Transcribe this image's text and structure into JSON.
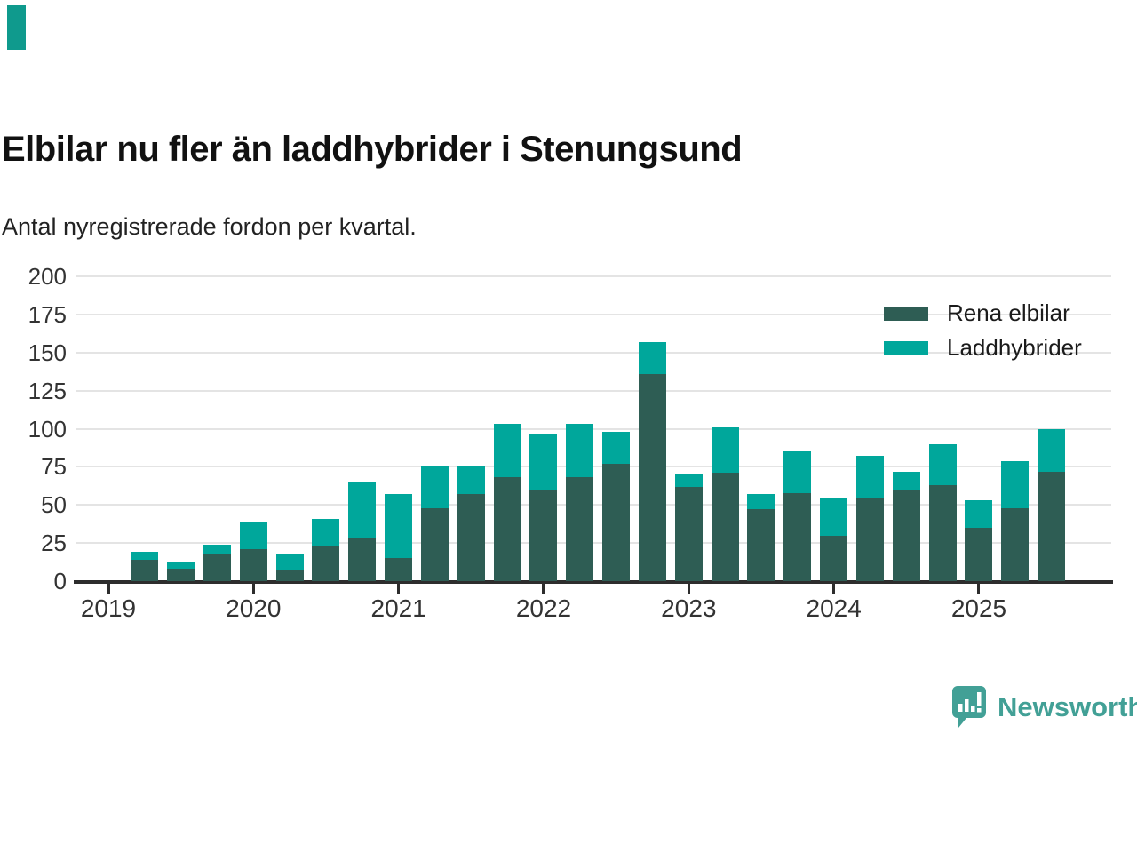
{
  "header": {
    "title": "Elbilar nu fler än laddhybrider i Stenungsund",
    "subtitle": "Antal nyregistrerade fordon per kvartal."
  },
  "colors": {
    "rena_elbilar": "#2e5d54",
    "laddhybrider": "#00a79b",
    "accent_mark": "#0f9a8d",
    "brand_teal": "#42a096",
    "axis_text": "#333333",
    "gridline": "#e4e4e4",
    "axis_line": "#2d2d2d"
  },
  "chart_data": {
    "type": "bar",
    "stacked": true,
    "title": "Elbilar nu fler än laddhybrider i Stenungsund",
    "subtitle": "Antal nyregistrerade fordon per kvartal.",
    "ylabel": "",
    "xlabel": "",
    "ylim": [
      0,
      200
    ],
    "y_ticks": [
      0,
      25,
      50,
      75,
      100,
      125,
      150,
      175,
      200
    ],
    "x_ticks": [
      "2019",
      "2020",
      "2021",
      "2022",
      "2023",
      "2024",
      "2025"
    ],
    "grid": true,
    "legend_position": "top-right",
    "categories": [
      "2019 Q2",
      "2019 Q3",
      "2019 Q4",
      "2020 Q1",
      "2020 Q2",
      "2020 Q3",
      "2020 Q4",
      "2021 Q1",
      "2021 Q2",
      "2021 Q3",
      "2021 Q4",
      "2022 Q1",
      "2022 Q2",
      "2022 Q3",
      "2022 Q4",
      "2023 Q1",
      "2023 Q2",
      "2023 Q3",
      "2023 Q4",
      "2024 Q1",
      "2024 Q2",
      "2024 Q3",
      "2024 Q4",
      "2025 Q1",
      "2025 Q2",
      "2025 Q3"
    ],
    "series": [
      {
        "name": "Rena elbilar",
        "color": "#2e5d54",
        "values": [
          14,
          8,
          18,
          21,
          7,
          23,
          28,
          15,
          48,
          57,
          68,
          60,
          68,
          77,
          136,
          62,
          71,
          47,
          58,
          30,
          55,
          60,
          63,
          35,
          48,
          72
        ]
      },
      {
        "name": "Laddhybrider",
        "color": "#00a79b",
        "values": [
          5,
          4,
          6,
          18,
          11,
          18,
          37,
          42,
          28,
          19,
          35,
          37,
          35,
          21,
          21,
          8,
          30,
          10,
          27,
          25,
          27,
          12,
          27,
          18,
          31,
          28
        ]
      }
    ]
  },
  "logo": {
    "brand": "Newsworthy",
    "icon": "newsworthy-speech-bubble-bar-chart-icon"
  }
}
